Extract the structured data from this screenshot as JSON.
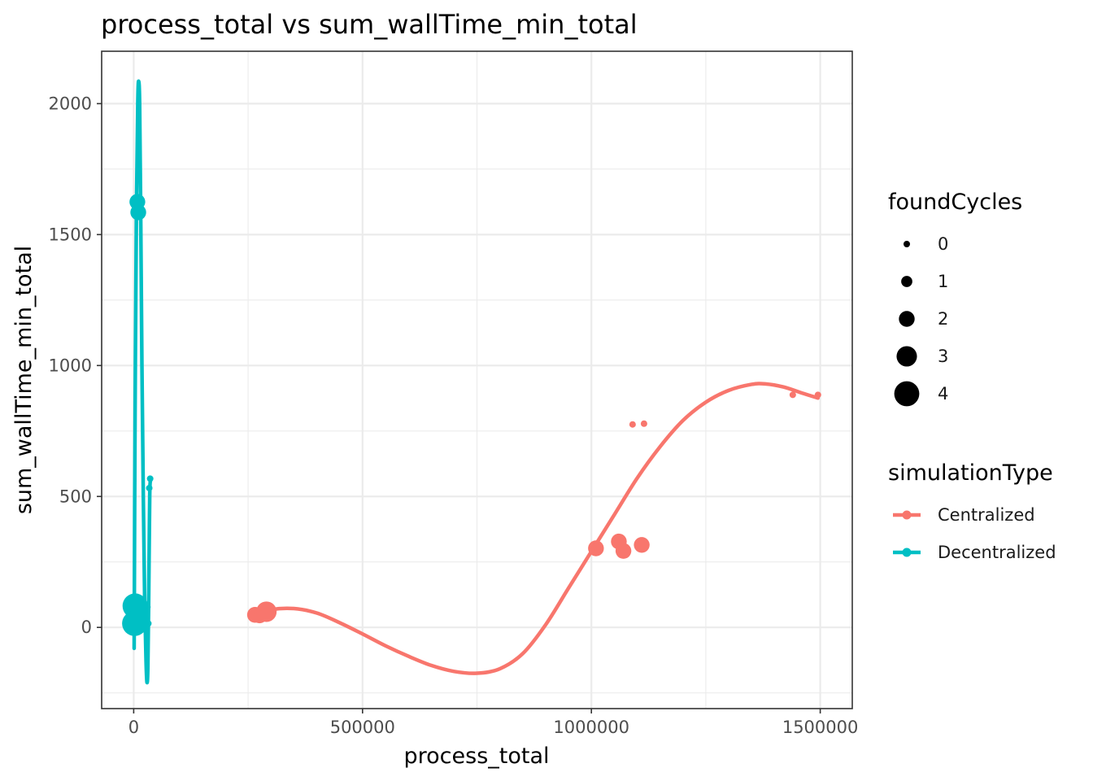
{
  "chart_data": {
    "type": "scatter",
    "title": "process_total  vs  sum_wallTime_min_total",
    "xlabel": "process_total",
    "ylabel": "sum_wallTime_min_total",
    "xlim": [
      -70000,
      1570000
    ],
    "ylim": [
      -310,
      2200
    ],
    "x_ticks": [
      0,
      500000,
      1000000,
      1500000
    ],
    "x_tick_labels": [
      "0",
      "500000",
      "1000000",
      "1500000"
    ],
    "y_ticks": [
      0,
      500,
      1000,
      1500,
      2000
    ],
    "y_tick_labels": [
      "0",
      "500",
      "1000",
      "1500",
      "2000"
    ],
    "grid": true,
    "size_legend": {
      "title": "foundCycles",
      "levels": [
        0,
        1,
        2,
        3,
        4
      ],
      "labels": [
        "0",
        "1",
        "2",
        "3",
        "4"
      ]
    },
    "color_legend": {
      "title": "simulationType",
      "entries": [
        "Centralized",
        "Decentralized"
      ]
    },
    "series": [
      {
        "name": "Centralized",
        "color": "#F8766D",
        "points": [
          {
            "x": 265000,
            "y": 48,
            "size": 2
          },
          {
            "x": 275000,
            "y": 46,
            "size": 2
          },
          {
            "x": 290000,
            "y": 60,
            "size": 3
          },
          {
            "x": 1010000,
            "y": 302,
            "size": 2
          },
          {
            "x": 1060000,
            "y": 328,
            "size": 2
          },
          {
            "x": 1070000,
            "y": 292,
            "size": 2
          },
          {
            "x": 1110000,
            "y": 315,
            "size": 2
          },
          {
            "x": 1090000,
            "y": 775,
            "size": 0
          },
          {
            "x": 1115000,
            "y": 778,
            "size": 0
          },
          {
            "x": 1440000,
            "y": 888,
            "size": 0
          },
          {
            "x": 1495000,
            "y": 888,
            "size": 0
          }
        ],
        "smooth": {
          "x": [
            265000,
            300000,
            350000,
            400000,
            450000,
            500000,
            550000,
            600000,
            650000,
            700000,
            750000,
            800000,
            850000,
            900000,
            950000,
            1000000,
            1050000,
            1100000,
            1150000,
            1200000,
            1250000,
            1300000,
            1350000,
            1380000,
            1420000,
            1460000,
            1495000
          ],
          "y": [
            48,
            68,
            72,
            55,
            18,
            -25,
            -70,
            -110,
            -145,
            -168,
            -175,
            -158,
            -100,
            10,
            150,
            290,
            430,
            570,
            690,
            790,
            860,
            905,
            928,
            930,
            918,
            895,
            876
          ]
        }
      },
      {
        "name": "Decentralized",
        "color": "#00BFC4",
        "points": [
          {
            "x": 2000,
            "y": 15,
            "size": 4
          },
          {
            "x": 3000,
            "y": 82,
            "size": 4
          },
          {
            "x": 6000,
            "y": 30,
            "size": 3
          },
          {
            "x": 8000,
            "y": 1625,
            "size": 2
          },
          {
            "x": 10000,
            "y": 1585,
            "size": 2
          },
          {
            "x": 30000,
            "y": 78,
            "size": 0
          },
          {
            "x": 32000,
            "y": 15,
            "size": 0
          },
          {
            "x": 34000,
            "y": 532,
            "size": 0
          },
          {
            "x": 36000,
            "y": 568,
            "size": 0
          }
        ],
        "smooth": {
          "x": [
            1000,
            3000,
            6000,
            9000,
            11000,
            13000,
            15000,
            18000,
            21000,
            24000,
            27000,
            29000,
            31000,
            33000,
            35000,
            36500
          ],
          "y": [
            -80,
            800,
            1600,
            2010,
            2085,
            2000,
            1650,
            1000,
            500,
            100,
            -130,
            -210,
            -150,
            150,
            500,
            560
          ]
        }
      }
    ]
  }
}
